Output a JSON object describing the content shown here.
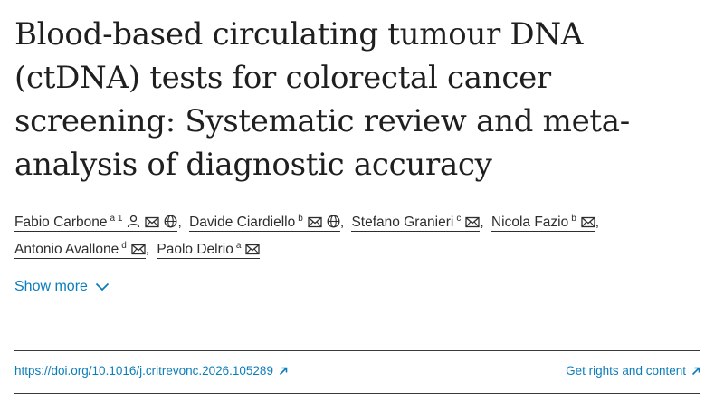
{
  "article": {
    "title": "Blood-based circulating tumour DNA (ctDNA) tests for colorectal cancer screening: Systematic review and meta-analysis of diagnostic accuracy"
  },
  "authors": [
    {
      "name": "Fabio Carbone",
      "aff": "a 1",
      "icons": [
        "person-icon",
        "envelope-icon",
        "globe-icon"
      ]
    },
    {
      "name": "Davide Ciardiello",
      "aff": "b",
      "icons": [
        "envelope-icon",
        "globe-icon"
      ]
    },
    {
      "name": "Stefano Granieri",
      "aff": "c",
      "icons": [
        "envelope-icon"
      ]
    },
    {
      "name": "Nicola Fazio",
      "aff": "b",
      "icons": [
        "envelope-icon"
      ]
    },
    {
      "name": "Antonio Avallone",
      "aff": "d",
      "icons": [
        "envelope-icon"
      ]
    },
    {
      "name": "Paolo Delrio",
      "aff": "a",
      "icons": [
        "envelope-icon"
      ]
    }
  ],
  "show_more": {
    "label": "Show more",
    "icon": "chevron-down-icon"
  },
  "links": {
    "doi": "https://doi.org/10.1016/j.critrevonc.2026.105289",
    "rights": "Get rights and content",
    "arrow_icon": "external-arrow-icon"
  },
  "colors": {
    "link": "#0c7dbb",
    "text": "#1f1f1f"
  }
}
